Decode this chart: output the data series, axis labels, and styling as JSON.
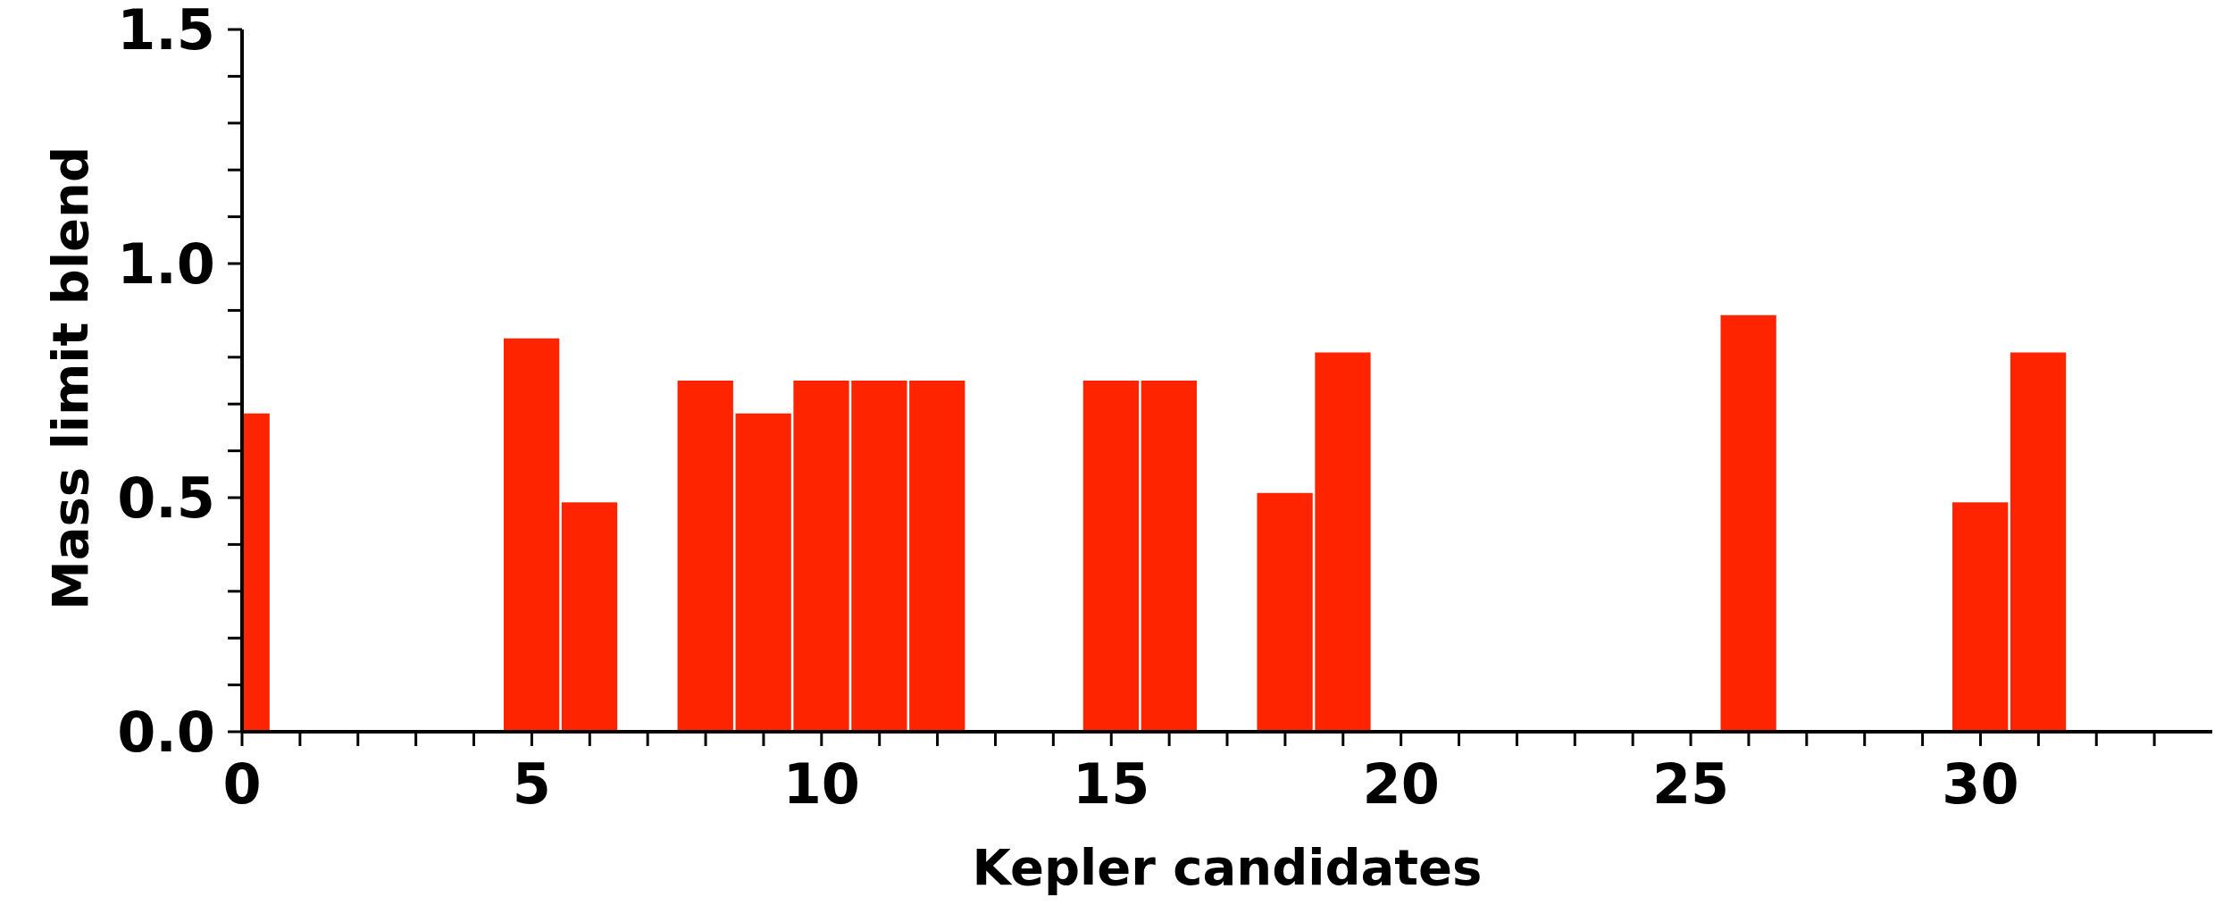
{
  "chart_data": {
    "type": "bar",
    "xlabel": "Kepler candidates",
    "ylabel": "Mass limit blend",
    "color": "#ff2400",
    "x": [
      0,
      5,
      6,
      8,
      9,
      10,
      11,
      12,
      15,
      16,
      18,
      19,
      26,
      30,
      31
    ],
    "values": [
      0.68,
      0.84,
      0.49,
      0.75,
      0.68,
      0.75,
      0.75,
      0.75,
      0.75,
      0.75,
      0.51,
      0.81,
      0.89,
      0.49,
      0.81
    ],
    "xlim": [
      0,
      34
    ],
    "xticks": [
      0,
      {
        "value": 1,
        "label": null
      },
      {
        "value": 2,
        "label": null
      },
      {
        "value": 3,
        "label": null
      },
      {
        "value": 4,
        "label": null
      },
      5,
      {
        "value": 6,
        "label": null
      },
      {
        "value": 7,
        "label": null
      },
      {
        "value": 8,
        "label": null
      },
      {
        "value": 9,
        "label": null
      },
      10,
      {
        "value": 11,
        "label": null
      },
      {
        "value": 12,
        "label": null
      },
      {
        "value": 13,
        "label": null
      },
      {
        "value": 14,
        "label": null
      },
      15,
      {
        "value": 16,
        "label": null
      },
      {
        "value": 17,
        "label": null
      },
      {
        "value": 18,
        "label": null
      },
      {
        "value": 19,
        "label": null
      },
      20,
      {
        "value": 21,
        "label": null
      },
      {
        "value": 22,
        "label": null
      },
      {
        "value": 23,
        "label": null
      },
      {
        "value": 24,
        "label": null
      },
      25,
      {
        "value": 26,
        "label": null
      },
      {
        "value": 27,
        "label": null
      },
      {
        "value": 28,
        "label": null
      },
      {
        "value": 29,
        "label": null
      },
      30,
      {
        "value": 31,
        "label": null
      },
      {
        "value": 32,
        "label": null
      },
      {
        "value": 33,
        "label": null
      }
    ],
    "ylim": [
      0,
      1.5
    ],
    "yticks": [
      {
        "value": 0,
        "label": "0.0"
      },
      {
        "value": 0.1,
        "label": null
      },
      {
        "value": 0.2,
        "label": null
      },
      {
        "value": 0.3,
        "label": null
      },
      {
        "value": 0.4,
        "label": null
      },
      {
        "value": 0.5,
        "label": "0.5"
      },
      {
        "value": 0.6,
        "label": null
      },
      {
        "value": 0.7,
        "label": null
      },
      {
        "value": 0.8,
        "label": null
      },
      {
        "value": 0.9,
        "label": null
      },
      {
        "value": 1,
        "label": "1.0"
      },
      {
        "value": 1.1,
        "label": null
      },
      {
        "value": 1.2,
        "label": null
      },
      {
        "value": 1.3,
        "label": null
      },
      {
        "value": 1.4,
        "label": null
      },
      {
        "value": 1.5,
        "label": "1.5"
      }
    ]
  }
}
